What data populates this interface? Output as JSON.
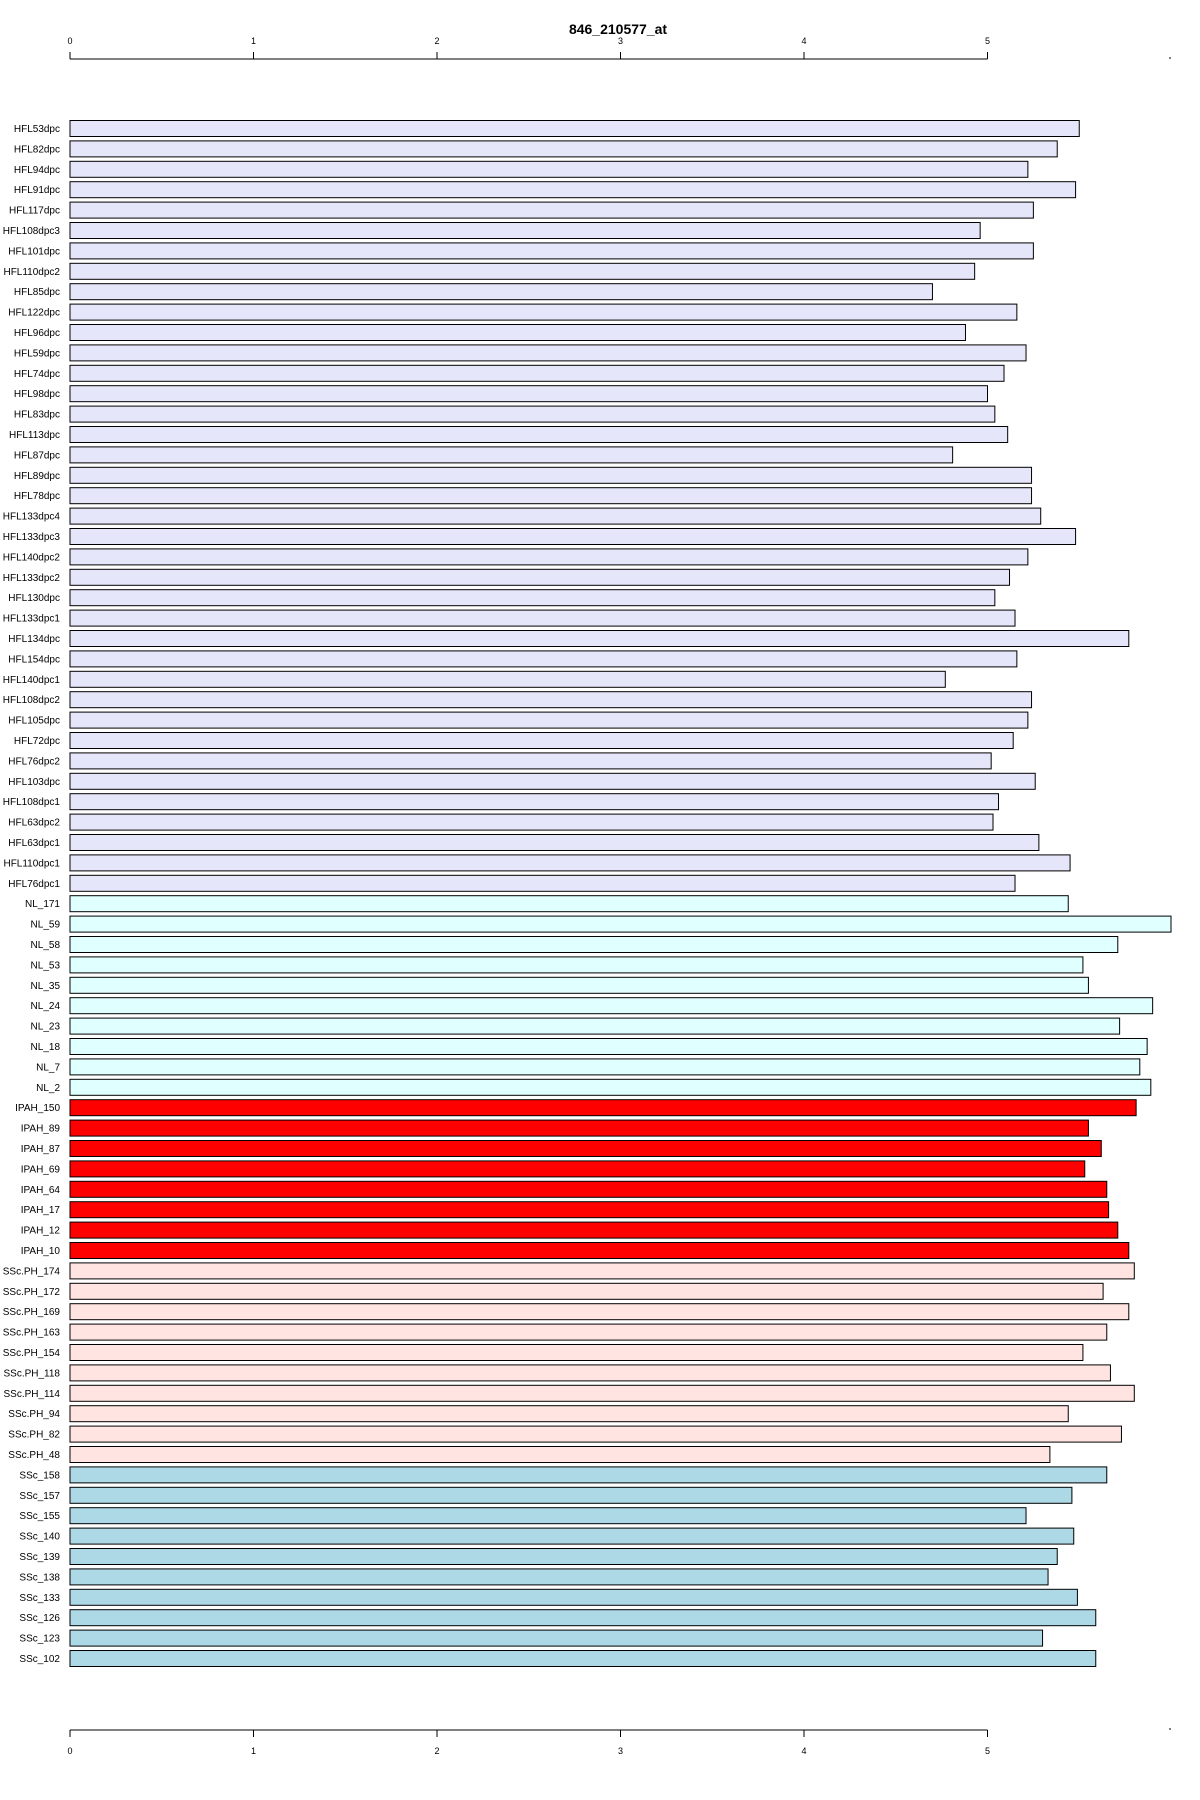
{
  "chart_data": {
    "type": "bar",
    "orientation": "horizontal",
    "title": "846_210577_at",
    "xlabel": "",
    "ylabel": "",
    "xlim": [
      0,
      6
    ],
    "ticks": [
      0,
      1,
      2,
      3,
      4,
      5
    ],
    "tick_labels": [
      "0",
      "1",
      "2",
      "3",
      "4",
      "5"
    ],
    "grid": false,
    "legend": "none",
    "groups": [
      {
        "color": "#e6e6fa",
        "categories": [
          "HFL53dpc",
          "HFL82dpc",
          "HFL94dpc",
          "HFL91dpc",
          "HFL117dpc",
          "HFL108dpc3",
          "HFL101dpc",
          "HFL110dpc2",
          "HFL85dpc",
          "HFL122dpc",
          "HFL96dpc",
          "HFL59dpc",
          "HFL74dpc",
          "HFL98dpc",
          "HFL83dpc",
          "HFL113dpc",
          "HFL87dpc",
          "HFL89dpc",
          "HFL78dpc",
          "HFL133dpc4",
          "HFL133dpc3",
          "HFL140dpc2",
          "HFL133dpc2",
          "HFL130dpc",
          "HFL133dpc1",
          "HFL134dpc",
          "HFL154dpc",
          "HFL140dpc1",
          "HFL108dpc2",
          "HFL105dpc",
          "HFL72dpc",
          "HFL76dpc2",
          "HFL103dpc",
          "HFL108dpc1",
          "HFL63dpc2",
          "HFL63dpc1",
          "HFL110dpc1",
          "HFL76dpc1"
        ]
      },
      {
        "color": "#e0ffff",
        "categories": [
          "NL_171",
          "NL_59",
          "NL_58",
          "NL_53",
          "NL_35",
          "NL_24",
          "NL_23",
          "NL_18",
          "NL_7",
          "NL_2"
        ]
      },
      {
        "color": "#ff0000",
        "categories": [
          "IPAH_150",
          "IPAH_89",
          "IPAH_87",
          "IPAH_69",
          "IPAH_64",
          "IPAH_17",
          "IPAH_12",
          "IPAH_10"
        ]
      },
      {
        "color": "#ffe4e1",
        "categories": [
          "SSc.PH_174",
          "SSc.PH_172",
          "SSc.PH_169",
          "SSc.PH_163",
          "SSc.PH_154",
          "SSc.PH_118",
          "SSc.PH_114",
          "SSc.PH_94",
          "SSc.PH_82",
          "SSc.PH_48"
        ]
      },
      {
        "color": "#add8e6",
        "categories": [
          "SSc_158",
          "SSc_157",
          "SSc_155",
          "SSc_140",
          "SSc_139",
          "SSc_138",
          "SSc_133",
          "SSc_126",
          "SSc_123",
          "SSc_102"
        ]
      }
    ],
    "values": [
      5.5,
      5.38,
      5.22,
      5.48,
      5.25,
      4.96,
      5.25,
      4.93,
      4.7,
      5.16,
      4.88,
      5.21,
      5.09,
      5.0,
      5.04,
      5.11,
      4.81,
      5.24,
      5.24,
      5.29,
      5.48,
      5.22,
      5.12,
      5.04,
      5.15,
      5.77,
      5.16,
      4.77,
      5.24,
      5.22,
      5.14,
      5.02,
      5.26,
      5.06,
      5.03,
      5.28,
      5.45,
      5.15,
      5.44,
      6.0,
      5.71,
      5.52,
      5.55,
      5.9,
      5.72,
      5.87,
      5.83,
      5.89,
      5.81,
      5.55,
      5.62,
      5.53,
      5.65,
      5.66,
      5.71,
      5.77,
      5.8,
      5.63,
      5.77,
      5.65,
      5.52,
      5.67,
      5.8,
      5.44,
      5.73,
      5.34,
      5.65,
      5.46,
      5.21,
      5.47,
      5.38,
      5.33,
      5.49,
      5.59,
      5.3,
      5.59
    ]
  }
}
